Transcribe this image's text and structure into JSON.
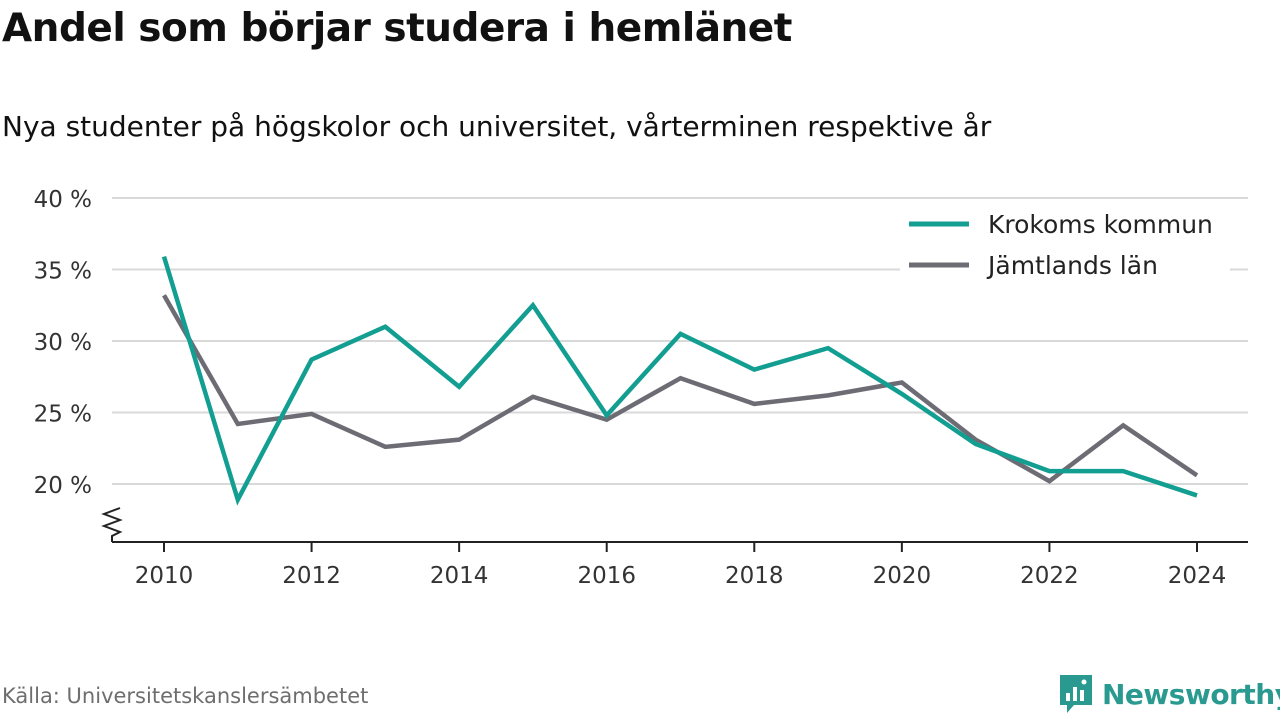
{
  "header": {
    "title": "Andel som börjar studera i hemlänet",
    "subtitle": "Nya studenter på högskolor och universitet, vårterminen respektive år"
  },
  "footer": {
    "source": "Källa: Universitetskanslersämbetet",
    "brand": "Newsworthy"
  },
  "colors": {
    "krokom": "#139e92",
    "jamtland": "#6d6c74",
    "grid": "#d9d9d9",
    "axis": "#222222",
    "brand": "#2a9a90"
  },
  "chart_data": {
    "type": "line",
    "x": [
      2010,
      2011,
      2012,
      2013,
      2014,
      2015,
      2016,
      2017,
      2018,
      2019,
      2020,
      2021,
      2022,
      2023,
      2024
    ],
    "x_ticks": [
      "2010",
      "2012",
      "2014",
      "2016",
      "2018",
      "2020",
      "2022",
      "2024"
    ],
    "y_ticks": [
      "20 %",
      "25 %",
      "30 %",
      "35 %",
      "40 %"
    ],
    "ylim": [
      16,
      40
    ],
    "y_axis_broken": true,
    "grid": true,
    "legend_position": "top-right",
    "series": [
      {
        "name": "Krokoms kommun",
        "color_key": "krokom",
        "values": [
          35.9,
          18.9,
          28.7,
          31.0,
          26.8,
          32.5,
          24.8,
          30.5,
          28.0,
          29.5,
          26.3,
          22.8,
          20.9,
          20.9,
          19.2
        ]
      },
      {
        "name": "Jämtlands län",
        "color_key": "jamtland",
        "values": [
          33.2,
          24.2,
          24.9,
          22.6,
          23.1,
          26.1,
          24.5,
          27.4,
          25.6,
          26.2,
          27.1,
          23.1,
          20.2,
          24.1,
          20.6
        ]
      }
    ]
  }
}
